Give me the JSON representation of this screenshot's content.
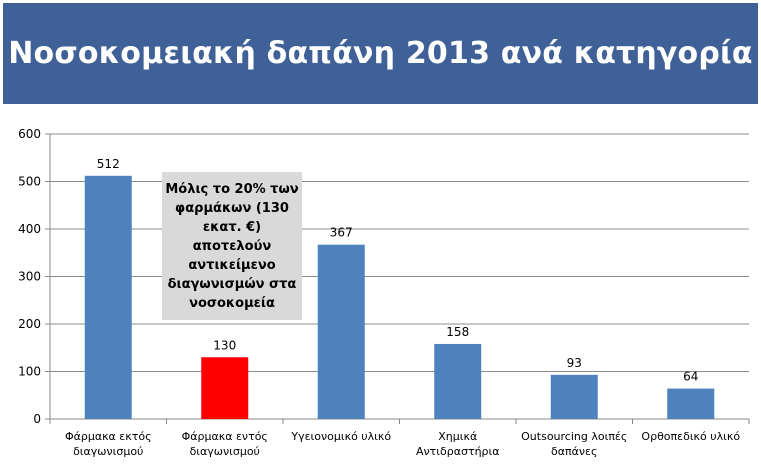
{
  "title": "Νοσοκομειακή δαπάνη 2013 ανά κατηγορία",
  "annotation": "Μόλις το 20% των φαρμάκων (130 εκατ. €) αποτελούν αντικείμενο διαγωνισμών στα νοσοκομεία",
  "colors": {
    "title_bg": "#3f6198",
    "bar": "#4f81bd",
    "highlight_bar": "#ff0000"
  },
  "chart_data": {
    "type": "bar",
    "categories": [
      [
        "Φάρμακα εκτός",
        "διαγωνισμού"
      ],
      [
        "Φάρμακα εντός",
        "διαγωνισμού"
      ],
      [
        "Υγειονομικό υλικό"
      ],
      [
        "Χημικά",
        "Αντιδραστήρια"
      ],
      [
        "Outsourcing λοιπές",
        "δαπάνες"
      ],
      [
        "Ορθοπεδικό υλικό"
      ]
    ],
    "values": [
      512,
      130,
      367,
      158,
      93,
      64
    ],
    "highlight_index": 1,
    "ylim": [
      0,
      600
    ],
    "yticks": [
      0,
      100,
      200,
      300,
      400,
      500,
      600
    ],
    "grid": true,
    "title": "",
    "xlabel": "",
    "ylabel": ""
  }
}
